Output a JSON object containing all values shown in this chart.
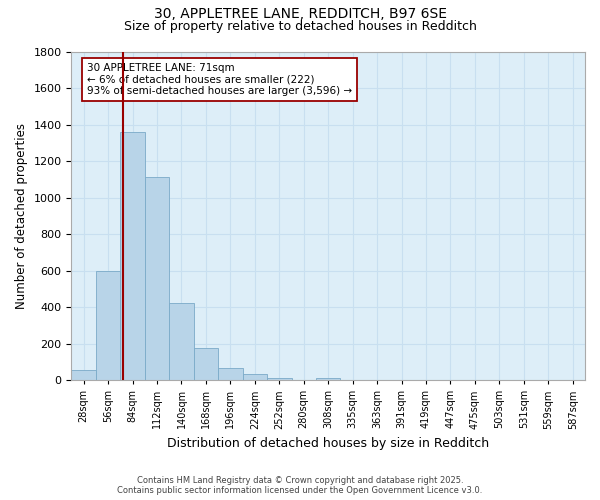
{
  "title_line1": "30, APPLETREE LANE, REDDITCH, B97 6SE",
  "title_line2": "Size of property relative to detached houses in Redditch",
  "xlabel": "Distribution of detached houses by size in Redditch",
  "ylabel": "Number of detached properties",
  "bin_labels": [
    "28sqm",
    "56sqm",
    "84sqm",
    "112sqm",
    "140sqm",
    "168sqm",
    "196sqm",
    "224sqm",
    "252sqm",
    "280sqm",
    "308sqm",
    "335sqm",
    "363sqm",
    "391sqm",
    "419sqm",
    "447sqm",
    "475sqm",
    "503sqm",
    "531sqm",
    "559sqm",
    "587sqm"
  ],
  "bar_values": [
    55,
    600,
    1360,
    1110,
    420,
    175,
    65,
    35,
    10,
    0,
    10,
    0,
    0,
    0,
    0,
    0,
    0,
    0,
    0,
    0,
    0
  ],
  "bar_color": "#b8d4e8",
  "bar_edge_color": "#7aaac8",
  "vline_color": "#990000",
  "vline_bar_index": 1.6,
  "annotation_text_line1": "30 APPLETREE LANE: 71sqm",
  "annotation_text_line2": "← 6% of detached houses are smaller (222)",
  "annotation_text_line3": "93% of semi-detached houses are larger (3,596) →",
  "annotation_box_color": "#ffffff",
  "annotation_box_edge_color": "#990000",
  "ylim": [
    0,
    1800
  ],
  "yticks": [
    0,
    200,
    400,
    600,
    800,
    1000,
    1200,
    1400,
    1600,
    1800
  ],
  "grid_color": "#c8dff0",
  "background_color": "#ddeef8",
  "footer_line1": "Contains HM Land Registry data © Crown copyright and database right 2025.",
  "footer_line2": "Contains public sector information licensed under the Open Government Licence v3.0."
}
